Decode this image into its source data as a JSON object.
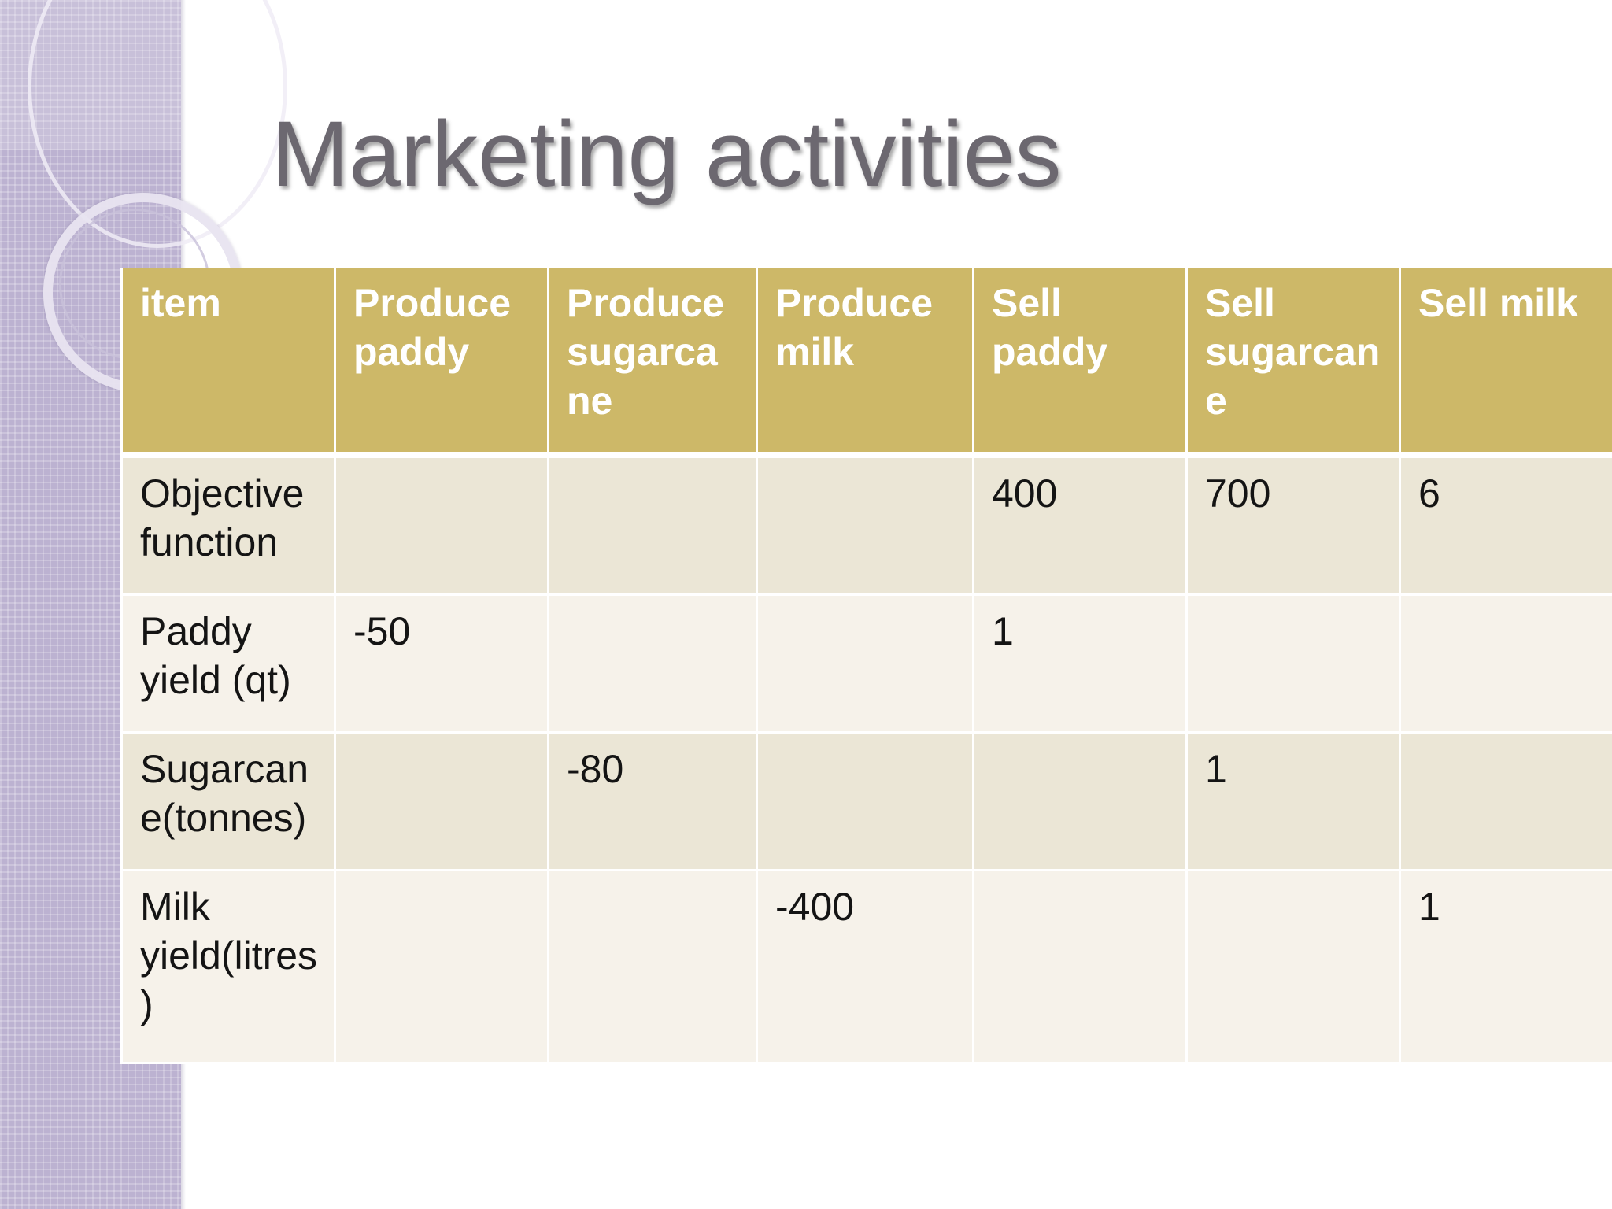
{
  "slide": {
    "title": "Marketing activities"
  },
  "table": {
    "headers": [
      "item",
      "Produce paddy",
      "Produce sugarcane",
      "Produce milk",
      "Sell paddy",
      "Sell sugarcane",
      "Sell milk"
    ],
    "rows": [
      [
        "Objective function",
        "",
        "",
        "",
        "400",
        "700",
        "6"
      ],
      [
        "Paddy yield (qt)",
        "-50",
        "",
        "",
        "1",
        "",
        ""
      ],
      [
        "Sugarcane(tonnes)",
        "",
        "-80",
        "",
        "",
        "1",
        ""
      ],
      [
        "Milk yield(litres)",
        "",
        "",
        "-400",
        "",
        "",
        "1"
      ]
    ]
  }
}
